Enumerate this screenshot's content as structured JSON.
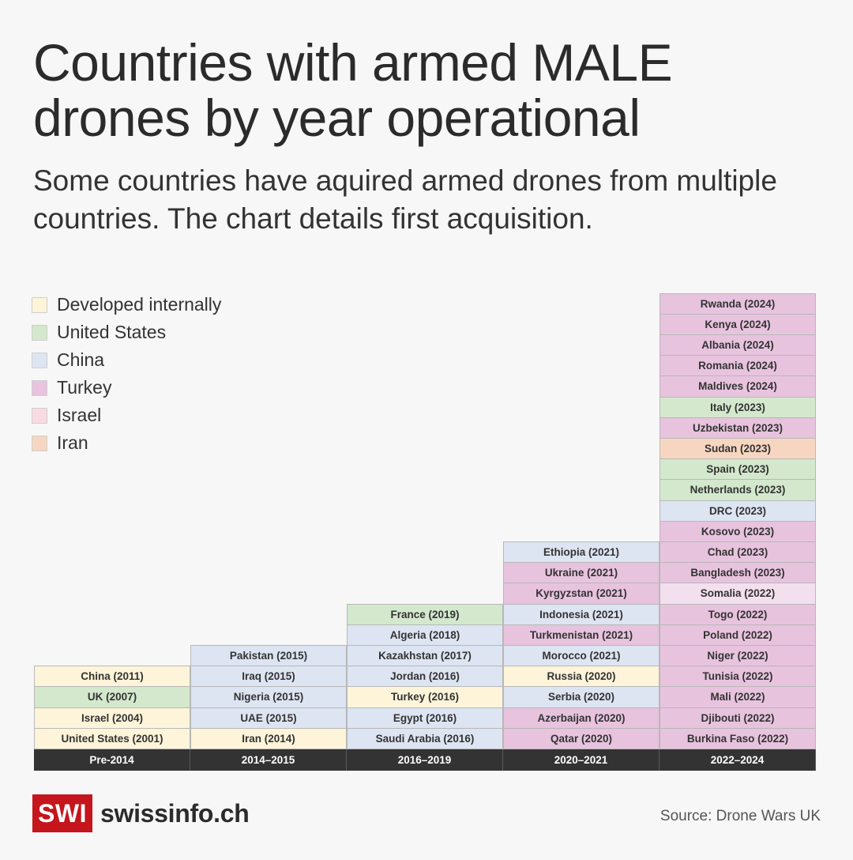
{
  "title": "Countries with armed MALE drones by year operational",
  "subtitle": "Some countries have aquired armed drones from multiple countries. The chart details first acquisition.",
  "colors": {
    "Developed internally": "#fdf4d9",
    "United States": "#d3e8cc",
    "China": "#dde4f2",
    "Turkey": "#e7c3de",
    "Turkey-light": "#f3dfee",
    "Israel": "#f8dbe0",
    "Iran": "#f7d6c1",
    "header": "#333333",
    "brand": "#c4161c"
  },
  "footer": {
    "logo": "SWI",
    "site": "swissinfo.ch",
    "source": "Source: Drone Wars UK"
  },
  "chart_data": {
    "type": "table",
    "legend": [
      "Developed internally",
      "United States",
      "China",
      "Turkey",
      "Israel",
      "Iran"
    ],
    "columns": [
      {
        "label": "Pre-2014",
        "entries": [
          {
            "text": "United States (2001)",
            "source": "Developed internally"
          },
          {
            "text": "Israel (2004)",
            "source": "Developed internally"
          },
          {
            "text": "UK (2007)",
            "source": "United States"
          },
          {
            "text": "China (2011)",
            "source": "Developed internally"
          }
        ]
      },
      {
        "label": "2014–2015",
        "entries": [
          {
            "text": "Iran (2014)",
            "source": "Developed internally"
          },
          {
            "text": "UAE (2015)",
            "source": "China"
          },
          {
            "text": "Nigeria (2015)",
            "source": "China"
          },
          {
            "text": "Iraq (2015)",
            "source": "China"
          },
          {
            "text": "Pakistan (2015)",
            "source": "China"
          }
        ]
      },
      {
        "label": "2016–2019",
        "entries": [
          {
            "text": "Saudi Arabia (2016)",
            "source": "China"
          },
          {
            "text": "Egypt (2016)",
            "source": "China"
          },
          {
            "text": "Turkey (2016)",
            "source": "Developed internally"
          },
          {
            "text": "Jordan (2016)",
            "source": "China"
          },
          {
            "text": "Kazakhstan (2017)",
            "source": "China"
          },
          {
            "text": "Algeria (2018)",
            "source": "China"
          },
          {
            "text": "France (2019)",
            "source": "United States"
          }
        ]
      },
      {
        "label": "2020–2021",
        "entries": [
          {
            "text": "Qatar (2020)",
            "source": "Turkey"
          },
          {
            "text": "Azerbaijan (2020)",
            "source": "Turkey"
          },
          {
            "text": "Serbia (2020)",
            "source": "China"
          },
          {
            "text": "Russia (2020)",
            "source": "Developed internally"
          },
          {
            "text": "Morocco (2021)",
            "source": "China"
          },
          {
            "text": "Turkmenistan (2021)",
            "source": "Turkey"
          },
          {
            "text": "Indonesia (2021)",
            "source": "China"
          },
          {
            "text": "Kyrgyzstan (2021)",
            "source": "Turkey"
          },
          {
            "text": "Ukraine (2021)",
            "source": "Turkey"
          },
          {
            "text": "Ethiopia (2021)",
            "source": "China"
          }
        ]
      },
      {
        "label": "2022–2024",
        "entries": [
          {
            "text": "Burkina Faso (2022)",
            "source": "Turkey"
          },
          {
            "text": "Djibouti (2022)",
            "source": "Turkey"
          },
          {
            "text": "Mali (2022)",
            "source": "Turkey"
          },
          {
            "text": "Tunisia (2022)",
            "source": "Turkey"
          },
          {
            "text": "Niger (2022)",
            "source": "Turkey"
          },
          {
            "text": "Poland (2022)",
            "source": "Turkey"
          },
          {
            "text": "Togo (2022)",
            "source": "Turkey"
          },
          {
            "text": "Somalia (2022)",
            "source": "Turkey-light"
          },
          {
            "text": "Bangladesh (2023)",
            "source": "Turkey"
          },
          {
            "text": "Chad (2023)",
            "source": "Turkey"
          },
          {
            "text": "Kosovo (2023)",
            "source": "Turkey"
          },
          {
            "text": "DRC (2023)",
            "source": "China"
          },
          {
            "text": "Netherlands (2023)",
            "source": "United States"
          },
          {
            "text": "Spain (2023)",
            "source": "United States"
          },
          {
            "text": "Sudan (2023)",
            "source": "Iran"
          },
          {
            "text": "Uzbekistan (2023)",
            "source": "Turkey"
          },
          {
            "text": "Italy (2023)",
            "source": "United States"
          },
          {
            "text": "Maldives (2024)",
            "source": "Turkey"
          },
          {
            "text": "Romania (2024)",
            "source": "Turkey"
          },
          {
            "text": "Albania (2024)",
            "source": "Turkey"
          },
          {
            "text": "Kenya (2024)",
            "source": "Turkey"
          },
          {
            "text": "Rwanda (2024)",
            "source": "Turkey"
          }
        ]
      }
    ]
  }
}
